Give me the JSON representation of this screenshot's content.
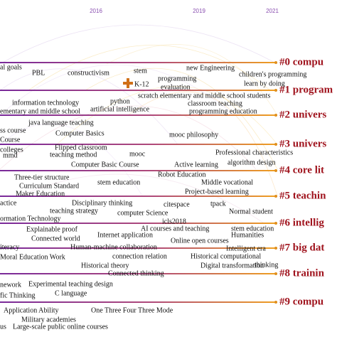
{
  "timeline": {
    "years": [
      "2016",
      "2019",
      "2021"
    ],
    "clusters": [
      "#0 compu",
      "#1 program",
      "#2 univers",
      "#3 univers",
      "#4 core lit",
      "#5 teachin",
      "#6 intellig",
      "#7 big dat",
      "#8 trainin",
      "#9 compu"
    ],
    "keywords": [
      "al goals",
      "PBL",
      "constructivism",
      "stem",
      "new Engineering",
      "children's programming",
      "programming",
      "learn by doing",
      "K-12",
      "evaluation",
      "scratch elementary and middle school students",
      "information technology",
      "python",
      "classroom teaching",
      "artificial intelligence",
      "programming education",
      "ementary and middle school",
      "java language teaching",
      "ss course",
      "Computer Basics",
      "mooc philosophy",
      "Course",
      "Flipped classroom",
      "colleges",
      "mmd",
      "teaching method",
      "mooc",
      "Professional characteristics",
      "algorithm design",
      "Computer Basic Course",
      "Active learning",
      "Three-tier structure",
      "Robot Education",
      "Curriculum  Standard",
      "stem education",
      "Middle vocational",
      "Maker Education",
      "Project-based learning",
      "actice",
      "Disciplinary thinking",
      "tpack",
      "teaching strategy",
      "computer  Science",
      "citespace",
      "Normal student",
      "ormation  Technology",
      "icls2018",
      "Explainable proof",
      "AI courses and teaching",
      "stem education",
      "Internet application",
      "Humanities",
      "Connected world",
      "Online open courses",
      "Human-machine collaboration",
      "iteracy",
      "Intelligent  era",
      "connection relation",
      "Historical  computational",
      "Moral Education Work",
      "thinking",
      "Historical theory",
      "Digital transformation",
      "Connected thinking",
      "nework",
      "Experimental teaching design",
      "fic Thinking",
      "C language",
      "Application Ability",
      "One Three Four Three Mode",
      "Military academies",
      "Large-scale public online courses",
      "us"
    ]
  }
}
